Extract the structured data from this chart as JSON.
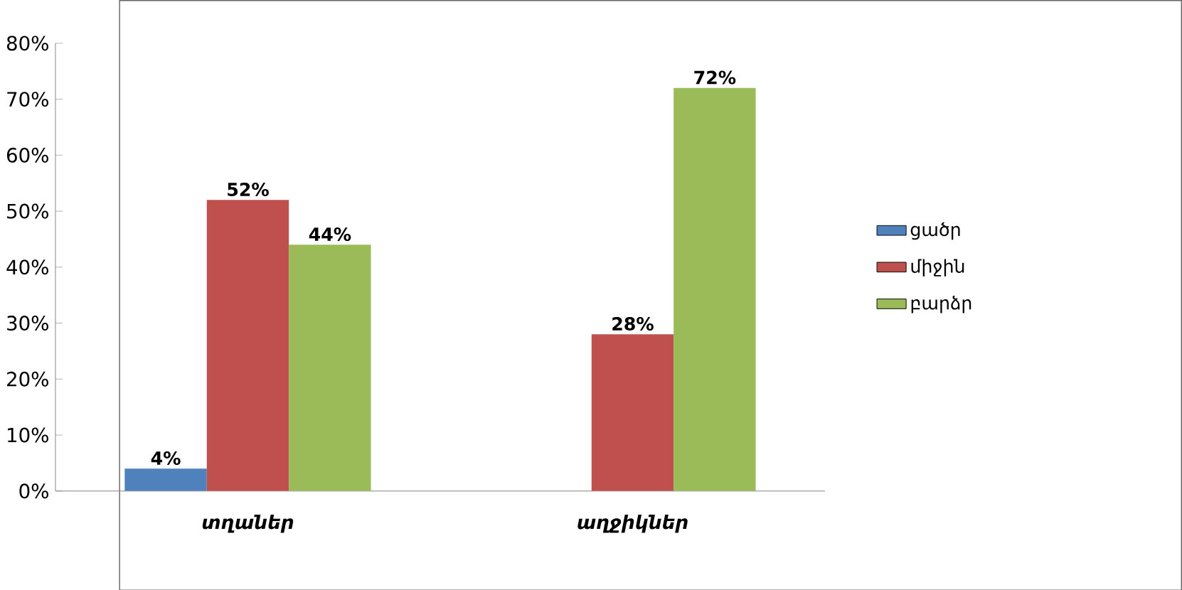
{
  "chart_data": {
    "type": "bar",
    "categories": [
      "տղաներ",
      "աղջիկներ"
    ],
    "series": [
      {
        "name": "ցածր",
        "color": "#4f81bd",
        "values": [
          4,
          null
        ],
        "value_labels": [
          "4%",
          null
        ]
      },
      {
        "name": "միջին",
        "color": "#c0504d",
        "values": [
          52,
          28
        ],
        "value_labels": [
          "52%",
          "28%"
        ]
      },
      {
        "name": "բարձր",
        "color": "#9bbb59",
        "values": [
          44,
          72
        ],
        "value_labels": [
          "44%",
          "72%"
        ]
      }
    ],
    "ylim": [
      0,
      80
    ],
    "yticks": [
      {
        "value": 0,
        "label": "0%"
      },
      {
        "value": 10,
        "label": "10%"
      },
      {
        "value": 20,
        "label": "20%"
      },
      {
        "value": 30,
        "label": "30%"
      },
      {
        "value": 40,
        "label": "40%"
      },
      {
        "value": 50,
        "label": "50%"
      },
      {
        "value": 60,
        "label": "60%"
      },
      {
        "value": 70,
        "label": "70%"
      },
      {
        "value": 80,
        "label": "80%"
      }
    ],
    "grid": false,
    "legend": "right"
  }
}
